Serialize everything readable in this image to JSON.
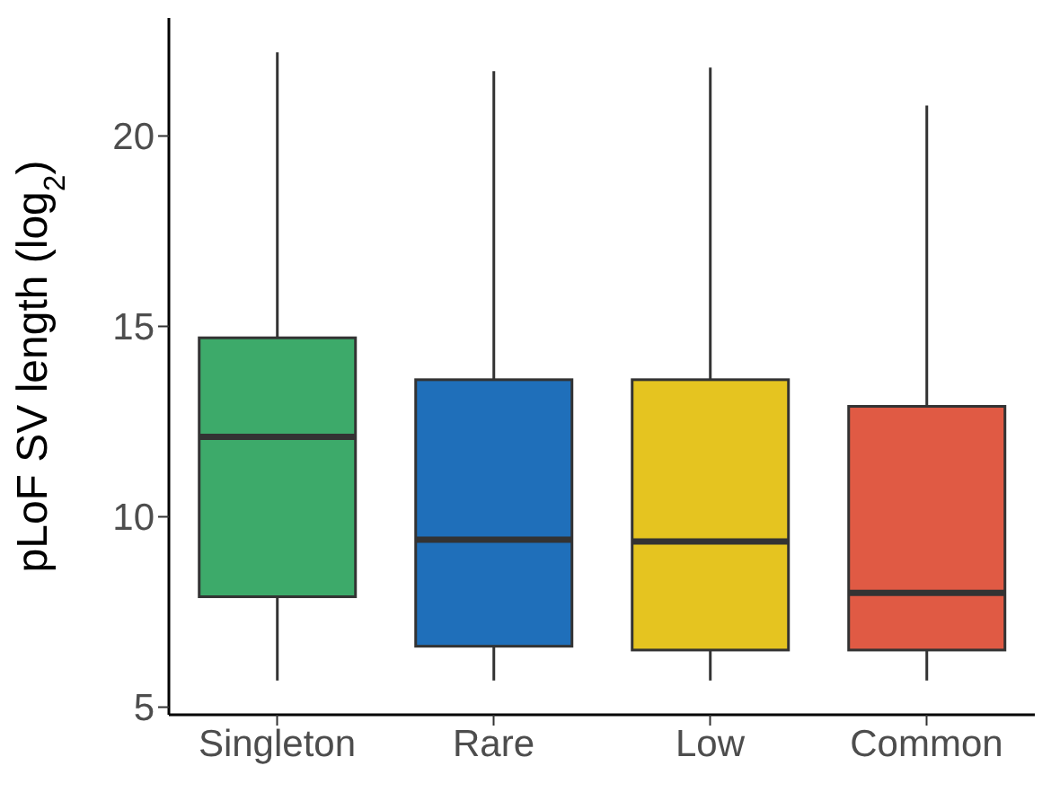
{
  "chart_data": {
    "type": "box",
    "ylabel": "pLoF SV length (log$_{2}$)",
    "categories": [
      "Singleton",
      "Rare",
      "Low",
      "Common"
    ],
    "colors": [
      "#3daa6a",
      "#1f6fba",
      "#e5c420",
      "#e05a44"
    ],
    "boxes": [
      {
        "low": 5.7,
        "q1": 7.9,
        "median": 12.1,
        "q3": 14.7,
        "high": 22.2
      },
      {
        "low": 5.7,
        "q1": 6.6,
        "median": 9.4,
        "q3": 13.6,
        "high": 21.7
      },
      {
        "low": 5.7,
        "q1": 6.5,
        "median": 9.35,
        "q3": 13.6,
        "high": 21.8
      },
      {
        "low": 5.7,
        "q1": 6.5,
        "median": 8.0,
        "q3": 12.9,
        "high": 20.8
      }
    ],
    "ylim": [
      4.8,
      23.1
    ],
    "yticks": [
      5,
      10,
      15,
      20
    ]
  }
}
